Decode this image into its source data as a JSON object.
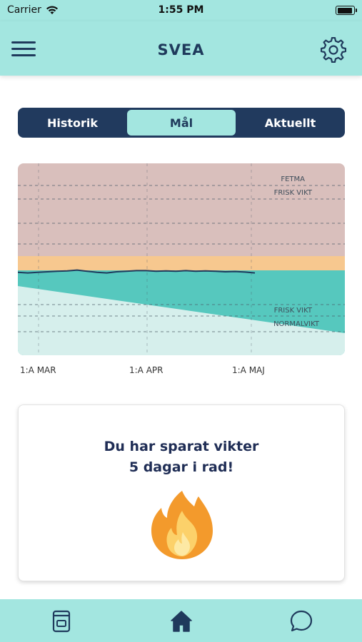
{
  "status_bar": {
    "carrier": "Carrier",
    "time": "1:55 PM"
  },
  "header": {
    "title": "SVEA",
    "menu_icon": "hamburger-menu-icon",
    "settings_icon": "gear-icon"
  },
  "segments": {
    "items": [
      {
        "label": "Historik"
      },
      {
        "label": "Mål"
      },
      {
        "label": "Aktuellt"
      }
    ],
    "selected": "Mål"
  },
  "chart_data": {
    "type": "line",
    "band_labels": [
      "FETMA",
      "FRISK VIKT",
      "FRISK VIKT",
      "NORMALVIKT"
    ],
    "x_tick_labels": [
      "1:A MAR",
      "1:A APR",
      "1:A MAJ"
    ],
    "series": [
      {
        "values": [
          0.42,
          0.44,
          0.42,
          0.4,
          0.38,
          0.37,
          0.34,
          0.38,
          0.42,
          0.44,
          0.4,
          0.38,
          0.36,
          0.36,
          0.38,
          0.37,
          0.38,
          0.36,
          0.38,
          0.37,
          0.38,
          0.4,
          0.39,
          0.41,
          0.44
        ]
      }
    ],
    "colors": {
      "overweight_band": "#d9bfbc",
      "border_band": "#f7c88f",
      "healthy_band": "#56c8be",
      "normal_band": "#d6efec",
      "line": "#1f3a5c"
    }
  },
  "streak_card": {
    "line1": "Du har sparat vikter",
    "line2": "5 dagar i rad!",
    "icon": "fire-icon"
  },
  "tab_bar": {
    "items": [
      {
        "icon": "journal-icon"
      },
      {
        "icon": "home-icon"
      },
      {
        "icon": "chat-bubble-icon"
      }
    ],
    "active": "home-icon"
  }
}
